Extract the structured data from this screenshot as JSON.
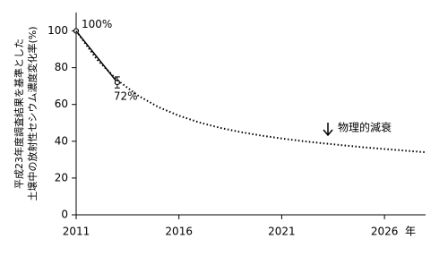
{
  "chart_data": {
    "type": "line",
    "y_label_lines": [
      "平成23年度調査結果を基準とした",
      "土壌中の放射性セシウム濃度変化率(%)"
    ],
    "x_unit": "年",
    "xlim": [
      2011,
      2028
    ],
    "xticks": [
      2011,
      2016,
      2021,
      2026
    ],
    "ylim": [
      0,
      110
    ],
    "yticks": [
      0,
      20,
      40,
      60,
      80,
      100
    ],
    "grid": false,
    "series": [
      {
        "color": "#000000",
        "style": "solid",
        "marker": "circle",
        "x": [
          2011,
          2013
        ],
        "values": [
          100,
          72
        ],
        "errors": [
          null,
          3
        ],
        "value_labels": [
          "100%",
          "72%"
        ]
      },
      {
        "name": "物理的減衰",
        "color": "#000000",
        "style": "dotted",
        "x": [
          2011,
          2012,
          2013,
          2014,
          2015,
          2016,
          2017,
          2018,
          2019,
          2020,
          2021,
          2022,
          2023,
          2024,
          2025,
          2026,
          2027,
          2028
        ],
        "values": [
          100,
          84.6,
          73.3,
          64.9,
          58.6,
          53.9,
          50.2,
          47.3,
          45,
          43.1,
          41.5,
          40.1,
          38.9,
          37.8,
          36.7,
          35.8,
          34.9,
          34
        ]
      }
    ]
  }
}
